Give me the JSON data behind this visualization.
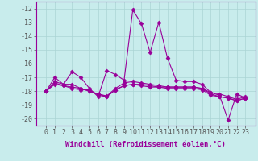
{
  "xlabel": "Windchill (Refroidissement éolien,°C)",
  "bg_color": "#c8ecec",
  "line_color": "#990099",
  "grid_color": "#aad4d4",
  "x_values": [
    0,
    1,
    2,
    3,
    4,
    5,
    6,
    7,
    8,
    9,
    10,
    11,
    12,
    13,
    14,
    15,
    16,
    17,
    18,
    19,
    20,
    21,
    22,
    23
  ],
  "series": [
    [
      -18.0,
      -17.0,
      -17.5,
      -16.6,
      -17.0,
      -17.8,
      -18.4,
      -16.5,
      -16.8,
      -17.2,
      -12.1,
      -13.1,
      -15.2,
      -13.0,
      -15.6,
      -17.2,
      -17.3,
      -17.3,
      -17.5,
      -18.1,
      -18.3,
      -20.1,
      -18.2,
      -18.5
    ],
    [
      -18.0,
      -17.5,
      -17.6,
      -17.7,
      -17.8,
      -18.0,
      -18.2,
      -18.4,
      -17.9,
      -17.6,
      -17.5,
      -17.6,
      -17.7,
      -17.7,
      -17.7,
      -17.7,
      -17.7,
      -17.7,
      -17.8,
      -18.2,
      -18.4,
      -18.5,
      -18.7,
      -18.5
    ],
    [
      -18.0,
      -17.4,
      -17.6,
      -17.8,
      -17.9,
      -17.9,
      -18.3,
      -18.4,
      -17.9,
      -17.6,
      -17.5,
      -17.5,
      -17.6,
      -17.7,
      -17.8,
      -17.8,
      -17.8,
      -17.8,
      -17.9,
      -18.3,
      -18.4,
      -18.5,
      -18.7,
      -18.5
    ],
    [
      -18.0,
      -17.3,
      -17.5,
      -17.5,
      -17.8,
      -18.0,
      -18.2,
      -18.35,
      -17.8,
      -17.4,
      -17.3,
      -17.4,
      -17.5,
      -17.6,
      -17.7,
      -17.7,
      -17.7,
      -17.7,
      -17.8,
      -18.1,
      -18.2,
      -18.4,
      -18.6,
      -18.4
    ]
  ],
  "ylim": [
    -20.5,
    -11.5
  ],
  "yticks": [
    -20,
    -19,
    -18,
    -17,
    -16,
    -15,
    -14,
    -13,
    -12
  ],
  "xticks": [
    0,
    1,
    2,
    3,
    4,
    5,
    6,
    7,
    8,
    9,
    10,
    11,
    12,
    13,
    14,
    15,
    16,
    17,
    18,
    19,
    20,
    21,
    22,
    23
  ],
  "marker": "D",
  "marker_size": 2.5,
  "line_width": 0.8,
  "tick_fontsize": 6,
  "xlabel_fontsize": 6.5
}
